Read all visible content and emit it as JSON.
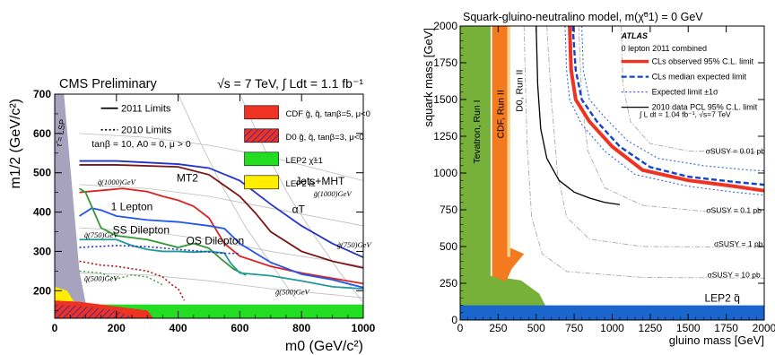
{
  "chart_data": [
    {
      "type": "line",
      "title": "CMS Preliminary",
      "subtitle": "√s = 7 TeV, ∫ Ldt = 1.1 fb⁻¹",
      "xlabel": "m0 (GeV/c²)",
      "ylabel": "m1/2 (GeV/c²)",
      "xlim": [
        0,
        1000
      ],
      "ylim": [
        130,
        700
      ],
      "x_ticks": [
        "0",
        "200",
        "400",
        "600",
        "800",
        "1000"
      ],
      "y_ticks": [
        "200",
        "300",
        "400",
        "500",
        "600",
        "700"
      ],
      "params_text": "tanβ = 10,  A0 = 0,  μ > 0",
      "lsp_label": "τ̃ = LSP",
      "line_legend": [
        {
          "label": "2011 Limits",
          "style": "solid"
        },
        {
          "label": "2010 Limits",
          "style": "dotted"
        }
      ],
      "box_legend": [
        {
          "label": "CDF  g̃, q̃, tanβ=5, μ<0",
          "color": "#ee3322"
        },
        {
          "label": "D0  g̃, q̃, tanβ=3, μ<0",
          "color": "#6b2a7a"
        },
        {
          "label": "LEP2  χ̃±1",
          "color": "#22dd22"
        },
        {
          "label": "LEP2  l̃±",
          "color": "#ffee00"
        }
      ],
      "series": [
        {
          "name": "Jets+MHT",
          "color": "#2233cc",
          "style": "solid",
          "points": [
            [
              80,
              530
            ],
            [
              200,
              530
            ],
            [
              400,
              522
            ],
            [
              500,
              512
            ],
            [
              600,
              480
            ],
            [
              700,
              420
            ],
            [
              800,
              365
            ],
            [
              900,
              320
            ],
            [
              1000,
              285
            ]
          ]
        },
        {
          "name": "αT",
          "color": "#7a1515",
          "style": "solid",
          "points": [
            [
              80,
              520
            ],
            [
              200,
              520
            ],
            [
              400,
              515
            ],
            [
              500,
              495
            ],
            [
              600,
              440
            ],
            [
              650,
              398
            ],
            [
              700,
              350
            ],
            [
              800,
              300
            ],
            [
              900,
              275
            ],
            [
              1000,
              258
            ]
          ]
        },
        {
          "name": "MT2",
          "color": "#dd2222",
          "style": "solid",
          "points": [
            [
              80,
              450
            ],
            [
              150,
              455
            ],
            [
              220,
              460
            ],
            [
              300,
              452
            ],
            [
              350,
              440
            ],
            [
              400,
              430
            ],
            [
              450,
              415
            ],
            [
              500,
              385
            ],
            [
              550,
              320
            ],
            [
              600,
              288
            ],
            [
              700,
              262
            ],
            [
              800,
              245
            ],
            [
              1000,
              218
            ]
          ]
        },
        {
          "name": "1 Lepton",
          "color": "#2255ee",
          "style": "solid",
          "points": [
            [
              80,
              390
            ],
            [
              120,
              410
            ],
            [
              150,
              405
            ],
            [
              200,
              390
            ],
            [
              300,
              380
            ],
            [
              400,
              375
            ],
            [
              500,
              365
            ],
            [
              550,
              358
            ],
            [
              600,
              320
            ],
            [
              700,
              272
            ],
            [
              800,
              242
            ],
            [
              900,
              228
            ],
            [
              1000,
              208
            ]
          ]
        },
        {
          "name": "SS Dilepton",
          "color": "#339933",
          "style": "solid",
          "points": [
            [
              80,
              460
            ],
            [
              100,
              450
            ],
            [
              150,
              360
            ],
            [
              200,
              340
            ],
            [
              300,
              330
            ],
            [
              350,
              320
            ],
            [
              400,
              310
            ],
            [
              450,
              320
            ],
            [
              500,
              308
            ],
            [
              540,
              280
            ],
            [
              580,
              255
            ],
            [
              620,
              240
            ]
          ]
        },
        {
          "name": "OS Dilepton",
          "color": "#229999",
          "style": "solid",
          "points": [
            [
              80,
              330
            ],
            [
              150,
              330
            ],
            [
              200,
              330
            ],
            [
              250,
              315
            ],
            [
              300,
              305
            ],
            [
              350,
              300
            ],
            [
              400,
              300
            ],
            [
              450,
              298
            ],
            [
              500,
              300
            ],
            [
              550,
              296
            ],
            [
              570,
              270
            ],
            [
              600,
              245
            ],
            [
              700,
              238
            ],
            [
              800,
              225
            ],
            [
              900,
              210
            ],
            [
              1000,
              205
            ]
          ]
        },
        {
          "name": "",
          "color": "#2233cc",
          "style": "dotted",
          "points": [
            [
              80,
              310
            ],
            [
              200,
              315
            ],
            [
              300,
              312
            ],
            [
              400,
              305
            ],
            [
              480,
              300
            ],
            [
              550,
              295
            ],
            [
              600,
              295
            ]
          ]
        },
        {
          "name": "",
          "color": "#aa1515",
          "style": "dotted",
          "points": [
            [
              80,
              275
            ],
            [
              150,
              265
            ],
            [
              200,
              262
            ],
            [
              300,
              250
            ],
            [
              350,
              235
            ],
            [
              380,
              215
            ],
            [
              400,
              205
            ],
            [
              420,
              175
            ]
          ]
        }
      ],
      "contours": [
        {
          "label": "q̃(1000)GeV",
          "x": 200,
          "y": 470
        },
        {
          "label": "g̃(1000)GeV",
          "x": 900,
          "y": 440
        },
        {
          "label": "q̃(750)GeV",
          "x": 150,
          "y": 335
        },
        {
          "label": "g̃(750)GeV",
          "x": 970,
          "y": 310
        },
        {
          "label": "q̃(500)GeV",
          "x": 150,
          "y": 225
        },
        {
          "label": "g̃(500)GeV",
          "x": 770,
          "y": 190
        }
      ]
    },
    {
      "type": "line",
      "title": "Squark-gluino-neutralino model,  m(χ̃⁰1) = 0 GeV",
      "xlabel": "gluino mass [GeV]",
      "ylabel": "squark mass [GeV]",
      "xlim": [
        0,
        2000
      ],
      "ylim": [
        0,
        2000
      ],
      "x_ticks": [
        "0",
        "250",
        "500",
        "750",
        "1000",
        "1250",
        "1500",
        "1750",
        "2000"
      ],
      "y_ticks": [
        "0",
        "250",
        "500",
        "750",
        "1000",
        "1250",
        "1500",
        "1750",
        "2000"
      ],
      "atlas_label": "ATLAS",
      "combined_label": "0 lepton 2011 combined",
      "lumi_label": "∫ L dt = 1.04 fb⁻¹, √s=7 TeV",
      "legend": [
        {
          "label": "CLs observed 95% C.L. limit",
          "color": "#ee3322",
          "style": "solid"
        },
        {
          "label": "CLs median expected limit",
          "color": "#1144cc",
          "style": "dashed"
        },
        {
          "label": "Expected limit ±1σ",
          "color": "#3366dd",
          "style": "dotted"
        },
        {
          "label": "2010 data PCL 95% C.L. limit",
          "color": "#000000",
          "style": "solid"
        }
      ],
      "region_labels": [
        "Tevatron, Run I",
        "CDF, Run II",
        "D0, Run II",
        "LEP2  q̃"
      ],
      "sigma_labels": [
        {
          "label": "σSUSY = 0.01 pb",
          "x": 1810,
          "y": 1130
        },
        {
          "label": "σSUSY = 0.1 pb",
          "x": 1800,
          "y": 730
        },
        {
          "label": "σSUSY = 1 pb",
          "x": 1830,
          "y": 500
        },
        {
          "label": "σSUSY = 10 pb",
          "x": 1800,
          "y": 290
        }
      ],
      "series": [
        {
          "name": "CLs observed 95% C.L. limit",
          "color": "#ee3322",
          "style": "solid",
          "points": [
            [
              720,
              2000
            ],
            [
              730,
              1700
            ],
            [
              760,
              1500
            ],
            [
              850,
              1350
            ],
            [
              1000,
              1180
            ],
            [
              1200,
              1020
            ],
            [
              1500,
              950
            ],
            [
              1800,
              910
            ],
            [
              2000,
              880
            ]
          ]
        },
        {
          "name": "CLs median expected limit",
          "color": "#1144cc",
          "style": "dashed",
          "points": [
            [
              740,
              2000
            ],
            [
              760,
              1700
            ],
            [
              800,
              1500
            ],
            [
              900,
              1350
            ],
            [
              1050,
              1180
            ],
            [
              1250,
              1040
            ],
            [
              1500,
              975
            ],
            [
              1800,
              940
            ],
            [
              2000,
              920
            ]
          ]
        },
        {
          "name": "Expected limit ±1σ",
          "color": "#3366dd",
          "style": "dotted",
          "points": [
            [
              800,
              2000
            ],
            [
              810,
              1700
            ],
            [
              850,
              1500
            ],
            [
              950,
              1380
            ],
            [
              1100,
              1220
            ],
            [
              1300,
              1100
            ],
            [
              1600,
              1050
            ],
            [
              1900,
              1020
            ],
            [
              2000,
              1015
            ]
          ]
        },
        {
          "name": "Expected limit ±1σ",
          "color": "#3366dd",
          "style": "dotted",
          "points": [
            [
              690,
              2000
            ],
            [
              700,
              1700
            ],
            [
              720,
              1500
            ],
            [
              800,
              1330
            ],
            [
              950,
              1150
            ],
            [
              1150,
              990
            ],
            [
              1500,
              910
            ],
            [
              1800,
              870
            ],
            [
              2000,
              850
            ]
          ]
        },
        {
          "name": "2010 data PCL 95% C.L. limit",
          "color": "#000000",
          "style": "solid",
          "points": [
            [
              500,
              2000
            ],
            [
              510,
              1600
            ],
            [
              530,
              1300
            ],
            [
              570,
              1100
            ],
            [
              650,
              950
            ],
            [
              750,
              870
            ],
            [
              850,
              830
            ],
            [
              950,
              800
            ],
            [
              1050,
              785
            ]
          ]
        }
      ]
    }
  ]
}
